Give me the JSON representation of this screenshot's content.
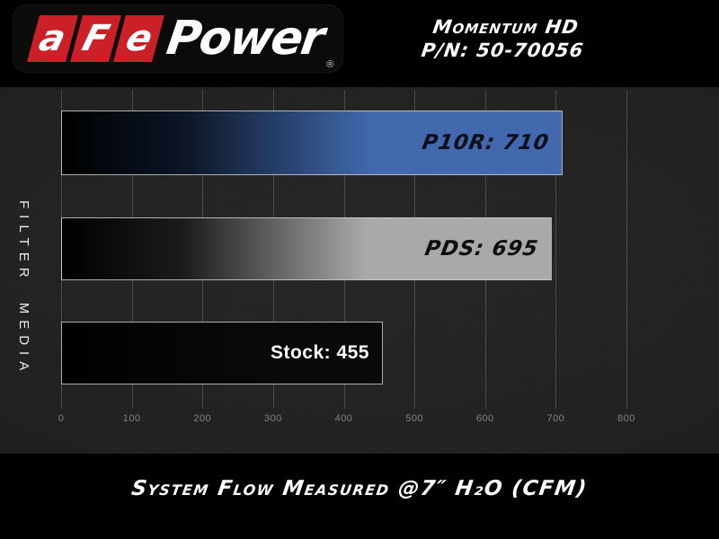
{
  "header": {
    "logo": {
      "segments": [
        "a",
        "F",
        "e"
      ],
      "wordmark": "Power",
      "registered_mark": "®",
      "red": "#cb2027"
    },
    "product_line": "Momentum HD",
    "part_number": "P/N: 50-70056"
  },
  "chart_data": {
    "type": "bar",
    "orientation": "horizontal",
    "title": "",
    "ylabel": "FILTER MEDIA",
    "caption": "System Flow Measured @7″ H₂O (CFM)",
    "xlim": [
      0,
      800
    ],
    "xticks": [
      "0",
      "100",
      "200",
      "300",
      "400",
      "500",
      "600",
      "700",
      "800"
    ],
    "grid": "vertical",
    "legend": "none",
    "categories": [
      "P10R",
      "PDS",
      "Stock"
    ],
    "values": [
      710,
      695,
      455
    ],
    "bars": [
      {
        "category": "P10R",
        "value": 710,
        "label": "P10R: 710",
        "label_color": "#0b0f18",
        "label_style": "techno",
        "fill_stops": [
          "#000000",
          "#0c1626",
          "#4269ae"
        ]
      },
      {
        "category": "PDS",
        "value": 695,
        "label": "PDS: 695",
        "label_color": "#0d0d0d",
        "label_style": "techno",
        "fill_stops": [
          "#000000",
          "#1c1c1c",
          "#a9a9a9"
        ]
      },
      {
        "category": "Stock",
        "value": 455,
        "label": "Stock: 455",
        "label_color": "#ffffff",
        "label_style": "plain",
        "fill_stops": [
          "#000000",
          "#040404",
          "#090909"
        ]
      }
    ]
  },
  "colors": {
    "background": "#000000",
    "chart_bg": "#1b1b1b",
    "gridline": "rgba(255,255,255,0.18)",
    "tick_label": "#818181",
    "bar_border": "rgba(205,205,205,0.85)",
    "accent_red": "#cb2027"
  }
}
